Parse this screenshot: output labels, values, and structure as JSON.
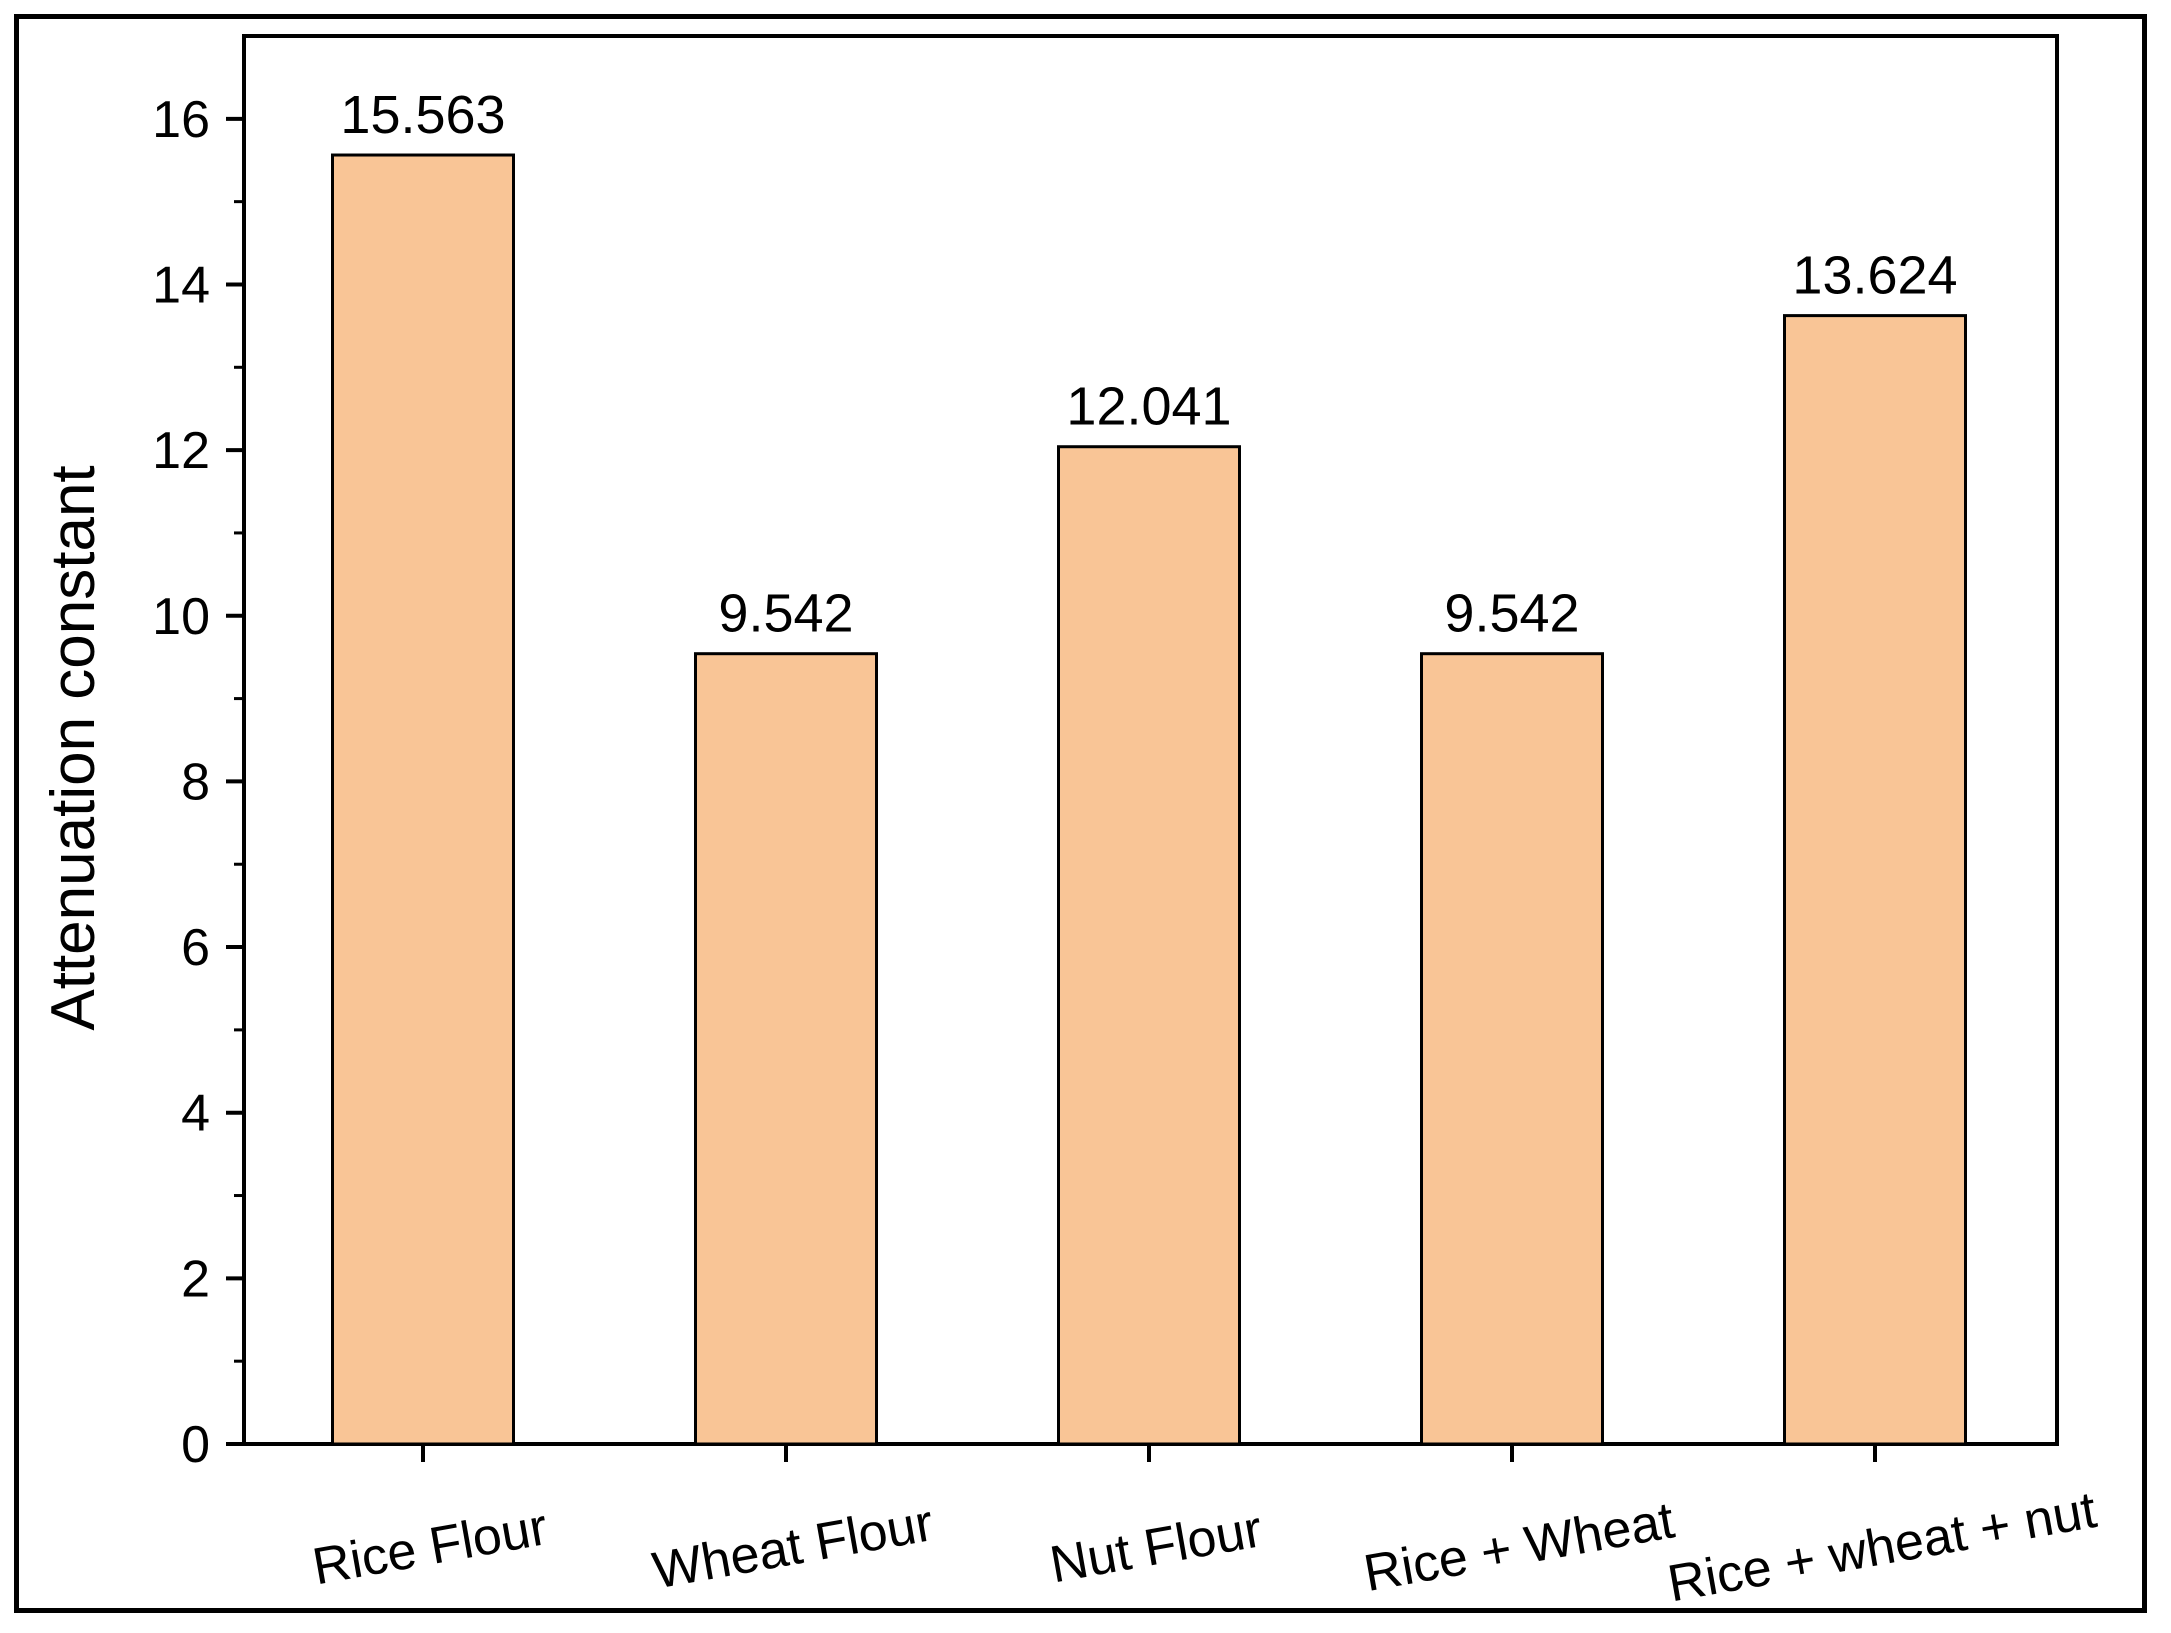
{
  "chart_data": {
    "type": "bar",
    "title": "",
    "xlabel": "",
    "ylabel": "Attenuation constant",
    "ylim": [
      0,
      17
    ],
    "yticks": [
      0,
      2,
      4,
      6,
      8,
      10,
      12,
      14,
      16
    ],
    "grid": false,
    "legend": "none",
    "categories": [
      "Rice Flour",
      "Wheat Flour",
      "Nut Flour",
      "Rice + Wheat",
      "Rice + wheat + nut"
    ],
    "values": [
      15.563,
      9.542,
      12.041,
      9.542,
      13.624
    ],
    "value_labels": [
      "15.563",
      "9.542",
      "12.041",
      "9.542",
      "13.624"
    ],
    "colors": {
      "bar_fill": "#F9C596",
      "bar_stroke": "#000000",
      "axis": "#000000"
    }
  }
}
